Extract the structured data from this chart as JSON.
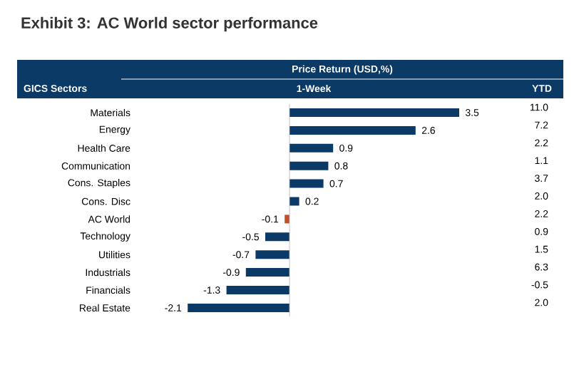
{
  "chart_data": {
    "type": "bar",
    "orientation": "horizontal",
    "title": "Exhibit 3: AC World sector performance",
    "subtitle": "Price Return (USD,%)",
    "ylabel": "GICS Sectors",
    "xlabel": "1-Week",
    "categories": [
      "Materials",
      "Energy",
      "Health Care",
      "Communication",
      "Cons. Staples",
      "Cons. Disc",
      "AC World",
      "Technology",
      "Utilities",
      "Industrials",
      "Financials",
      "Real Estate"
    ],
    "values": [
      3.5,
      2.6,
      0.9,
      0.8,
      0.7,
      0.2,
      -0.1,
      -0.5,
      -0.7,
      -0.9,
      -1.3,
      -2.1
    ],
    "colors": [
      "#0b3a66",
      "#0b3a66",
      "#0b3a66",
      "#0b3a66",
      "#0b3a66",
      "#0b3a66",
      "#c0502a",
      "#0b3a66",
      "#0b3a66",
      "#0b3a66",
      "#0b3a66",
      "#0b3a66"
    ],
    "data_labels": true,
    "annotations": [
      "YTD",
      "11.0",
      "7.2",
      "2.2",
      "1.1",
      "3.7",
      "2.0",
      "2.2",
      "0.9",
      "1.5",
      "6.3",
      "-0.5",
      "2.0"
    ]
  }
}
